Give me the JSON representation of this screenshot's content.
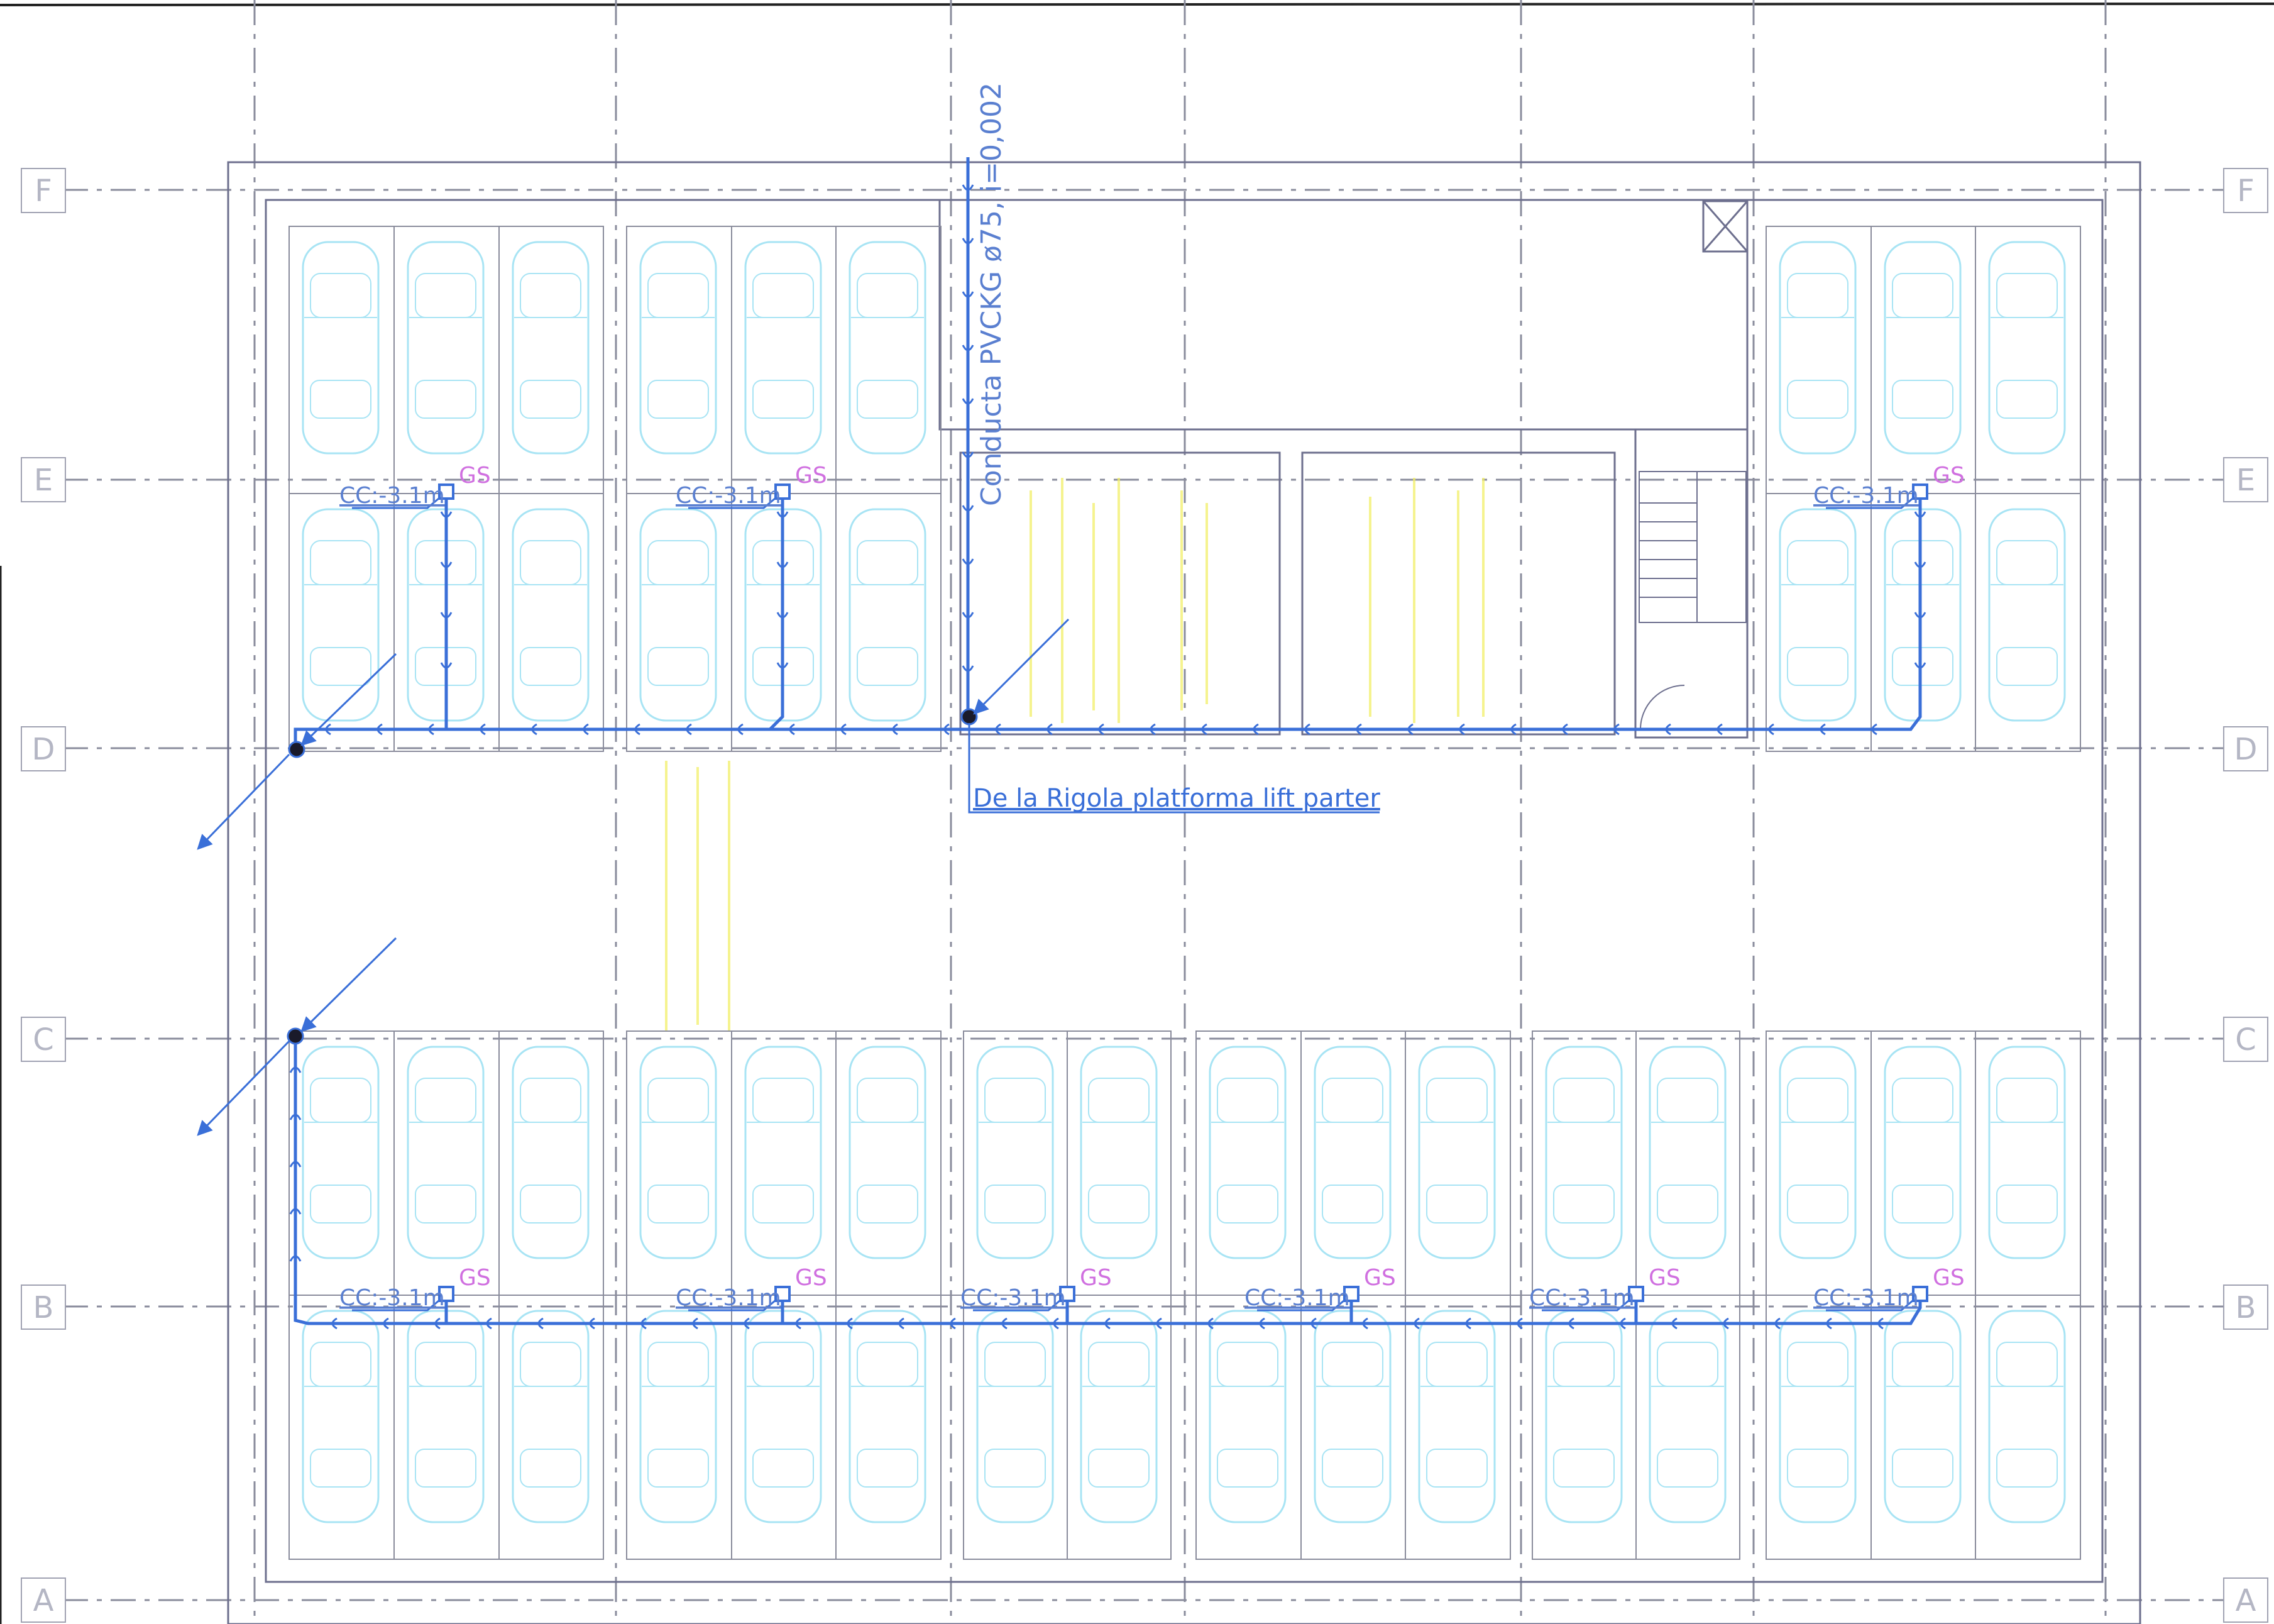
{
  "drawing": {
    "grid_labels": [
      "F",
      "E",
      "D",
      "C",
      "B",
      "A"
    ],
    "conduit_label": "Conducta PVCKG ø75, i=0,002",
    "inlet_note": "De la Rigola platforma lift parter",
    "drain_upper": [
      {
        "depth": "CC:-3.1m",
        "code": "GS"
      },
      {
        "depth": "CC:-3.1m",
        "code": "GS"
      },
      {
        "depth": "CC:-3.1m",
        "code": "GS"
      }
    ],
    "drain_lower": [
      {
        "depth": "CC:-3.1m",
        "code": "GS"
      },
      {
        "depth": "CC:-3.1m",
        "code": "GS"
      },
      {
        "depth": "CC:-3.1m",
        "code": "GS"
      },
      {
        "depth": "CC:-3.1m",
        "code": "GS"
      },
      {
        "depth": "CC:-3.1m",
        "code": "GS"
      },
      {
        "depth": "CC:-3.1m",
        "code": "GS"
      }
    ]
  },
  "colors": {
    "pipe": "#3a6fd8",
    "label_blue": "#5a7fd0",
    "gs_magenta": "#d070e0",
    "car_cyan": "#a8e4f4",
    "wall_grey": "#6d6f8e",
    "grid_grey": "#8a8c9c",
    "highlight_yellow": "#f2ef6a"
  }
}
